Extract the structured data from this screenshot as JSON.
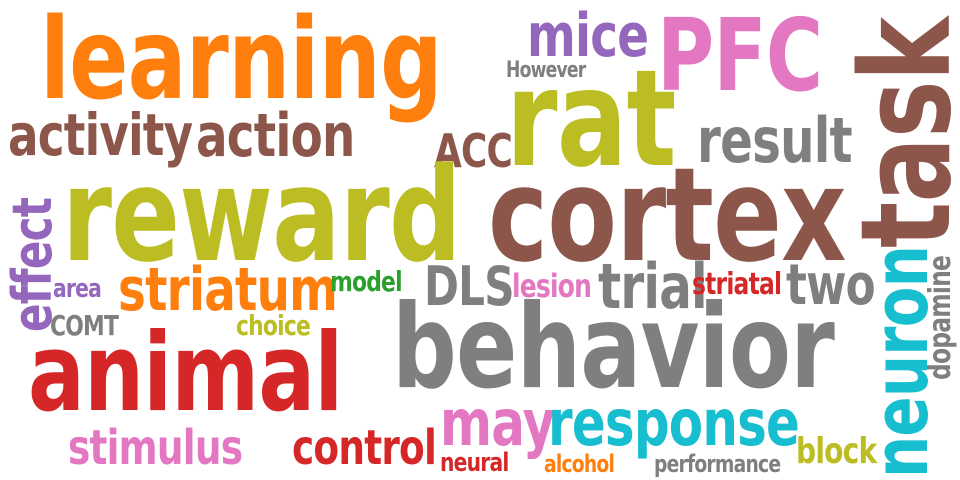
{
  "palette": {
    "orange": "#ff7f0e",
    "purple": "#9467bd",
    "pink": "#e377c2",
    "brown": "#8c564b",
    "olive": "#bcbd22",
    "gray": "#7f7f7f",
    "red": "#d62728",
    "green": "#2ca02c",
    "cyan": "#17becf"
  },
  "words": [
    {
      "id": "learning",
      "text": "learning",
      "color": "#ff7f0e"
    },
    {
      "id": "mice",
      "text": "mice",
      "color": "#9467bd"
    },
    {
      "id": "PFC",
      "text": "PFC",
      "color": "#e377c2"
    },
    {
      "id": "However",
      "text": "However",
      "color": "#7f7f7f"
    },
    {
      "id": "activity",
      "text": "activity",
      "color": "#8c564b"
    },
    {
      "id": "action",
      "text": "action",
      "color": "#8c564b"
    },
    {
      "id": "ACC",
      "text": "ACC",
      "color": "#8c564b"
    },
    {
      "id": "rat",
      "text": "rat",
      "color": "#bcbd22"
    },
    {
      "id": "result",
      "text": "result",
      "color": "#7f7f7f"
    },
    {
      "id": "task",
      "text": "task",
      "color": "#8c564b"
    },
    {
      "id": "reward",
      "text": "reward",
      "color": "#bcbd22"
    },
    {
      "id": "cortex",
      "text": "cortex",
      "color": "#8c564b"
    },
    {
      "id": "effect",
      "text": "effect",
      "color": "#9467bd"
    },
    {
      "id": "area",
      "text": "area",
      "color": "#9467bd"
    },
    {
      "id": "striatum",
      "text": "striatum",
      "color": "#ff7f0e"
    },
    {
      "id": "model",
      "text": "model",
      "color": "#2ca02c"
    },
    {
      "id": "DLS",
      "text": "DLS",
      "color": "#7f7f7f"
    },
    {
      "id": "lesion",
      "text": "lesion",
      "color": "#e377c2"
    },
    {
      "id": "trial",
      "text": "trial",
      "color": "#7f7f7f"
    },
    {
      "id": "striatal",
      "text": "striatal",
      "color": "#d62728"
    },
    {
      "id": "two",
      "text": "two",
      "color": "#7f7f7f"
    },
    {
      "id": "neuron",
      "text": "neuron",
      "color": "#17becf"
    },
    {
      "id": "dopamine",
      "text": "dopamine",
      "color": "#7f7f7f"
    },
    {
      "id": "COMT",
      "text": "COMT",
      "color": "#7f7f7f"
    },
    {
      "id": "choice",
      "text": "choice",
      "color": "#bcbd22"
    },
    {
      "id": "animal",
      "text": "animal",
      "color": "#d62728"
    },
    {
      "id": "behavior",
      "text": "behavior",
      "color": "#7f7f7f"
    },
    {
      "id": "may",
      "text": "may",
      "color": "#e377c2"
    },
    {
      "id": "response",
      "text": "response",
      "color": "#17becf"
    },
    {
      "id": "stimulus",
      "text": "stimulus",
      "color": "#e377c2"
    },
    {
      "id": "control",
      "text": "control",
      "color": "#d62728"
    },
    {
      "id": "neural",
      "text": "neural",
      "color": "#d62728"
    },
    {
      "id": "alcohol",
      "text": "alcohol",
      "color": "#ff7f0e"
    },
    {
      "id": "performance",
      "text": "performance",
      "color": "#7f7f7f"
    },
    {
      "id": "block",
      "text": "block",
      "color": "#bcbd22"
    }
  ]
}
